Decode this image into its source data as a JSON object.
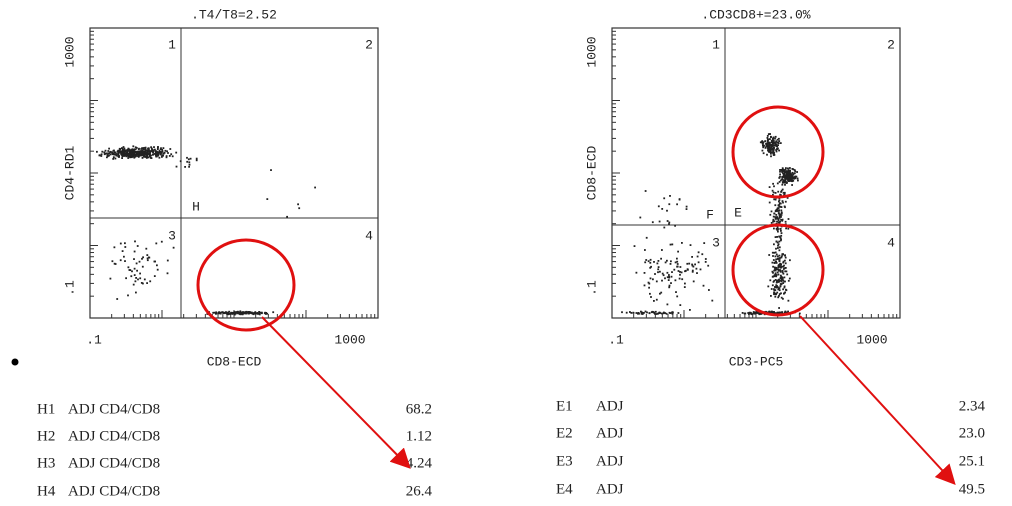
{
  "plots": [
    {
      "title": ".T4/T8=2.52",
      "y_label": "CD4-RD1",
      "x_label": "CD8-ECD",
      "x_ticks": [
        ".1",
        "1000"
      ],
      "y_ticks": [
        "1000",
        ".1"
      ],
      "quadrants": [
        "1",
        "2",
        "3",
        "4"
      ],
      "gates": [
        "H"
      ]
    },
    {
      "title": ".CD3CD8+=23.0%",
      "y_label": "CD8-ECD",
      "x_label": "CD3-PC5",
      "x_ticks": [
        ".1",
        "1000"
      ],
      "y_ticks": [
        "1000",
        ".1"
      ],
      "quadrants": [
        "1",
        "2",
        "3",
        "4"
      ],
      "gates": [
        "E",
        "F"
      ]
    }
  ],
  "tables": [
    {
      "rows": [
        [
          "H1",
          "ADJ CD4/CD8",
          "68.2"
        ],
        [
          "H2",
          "ADJ CD4/CD8",
          "1.12"
        ],
        [
          "H3",
          "ADJ CD4/CD8",
          "4.24"
        ],
        [
          "H4",
          "ADJ CD4/CD8",
          "26.4"
        ]
      ]
    },
    {
      "rows": [
        [
          "E1",
          "ADJ",
          "2.34"
        ],
        [
          "E2",
          "ADJ",
          "23.0"
        ],
        [
          "E3",
          "ADJ",
          "25.1"
        ],
        [
          "E4",
          "ADJ",
          "49.5"
        ]
      ]
    }
  ]
}
